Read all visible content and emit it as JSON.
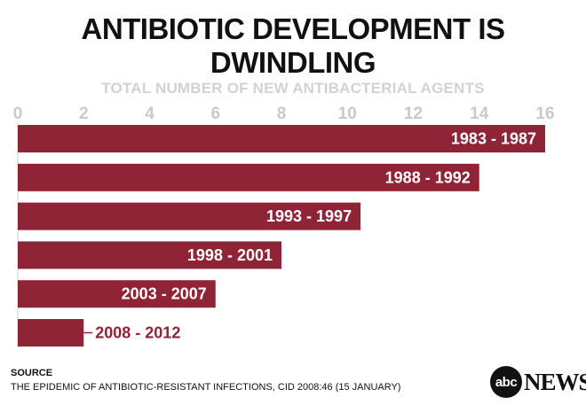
{
  "chart_data": {
    "type": "bar",
    "orientation": "horizontal",
    "title": "ANTIBIOTIC DEVELOPMENT IS DWINDLING",
    "xlabel": "TOTAL NUMBER OF NEW ANTIBACTERIAL AGENTS",
    "xlim": [
      0,
      16
    ],
    "xticks": [
      0,
      2,
      4,
      6,
      8,
      10,
      12,
      14,
      16
    ],
    "categories": [
      "1983 - 1987",
      "1988 - 1992",
      "1993 - 1997",
      "1998 - 2001",
      "2003 - 2007",
      "2008 - 2012"
    ],
    "values": [
      16,
      14,
      10.4,
      8,
      6,
      2
    ],
    "bar_color": "#8e2436",
    "grid": false
  },
  "source": {
    "heading": "SOURCE",
    "text": "THE EPIDEMIC OF ANTIBIOTIC-RESISTANT INFECTIONS, CID 2008:46 (15 JANUARY)"
  },
  "logo": {
    "abc": "abc",
    "news": "NEWS"
  }
}
